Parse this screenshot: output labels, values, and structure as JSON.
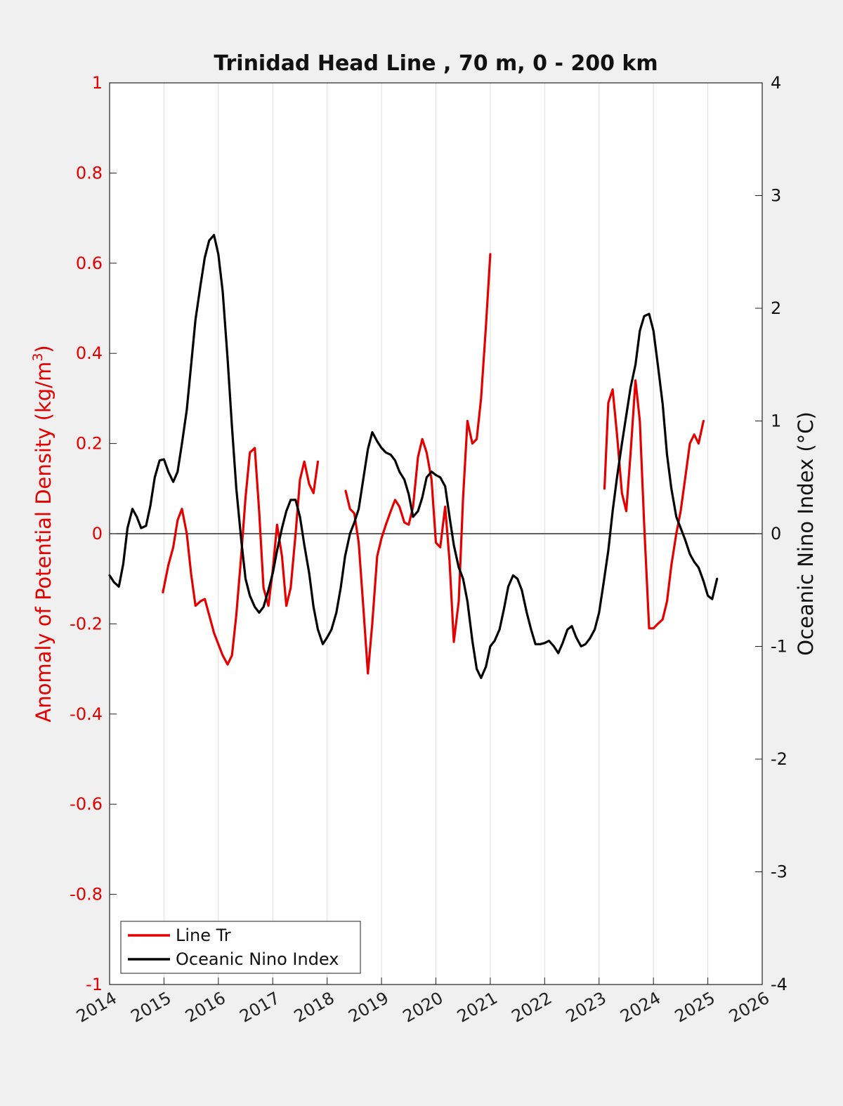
{
  "chart_data": {
    "type": "line",
    "title": "Trinidad Head Line , 70 m, 0 - 200 km",
    "ylabel_left": "Anomaly of Potential Density (kg/m³)",
    "ylabel_left_parts": {
      "base": "Anomaly of Potential Density (kg/m",
      "sup": "3",
      "end": ")"
    },
    "ylabel_right": "Oceanic Nino Index (°C)",
    "xlim": [
      2014,
      2026
    ],
    "ylim_left": [
      -1,
      1
    ],
    "ylim_right": [
      -4,
      4
    ],
    "x_ticks": [
      "2014",
      "2015",
      "2016",
      "2017",
      "2018",
      "2019",
      "2020",
      "2021",
      "2022",
      "2023",
      "2024",
      "2025",
      "2026"
    ],
    "y_ticks_left": [
      "1",
      "0.8",
      "0.6",
      "0.4",
      "0.2",
      "0",
      "-0.2",
      "-0.4",
      "-0.6",
      "-0.8",
      "-1"
    ],
    "y_ticks_right": [
      "4",
      "3",
      "2",
      "1",
      "0",
      "-1",
      "-2",
      "-3",
      "-4"
    ],
    "grid": "vertical",
    "legend_position": "bottom-left",
    "colors": {
      "line_tr": "#e50000",
      "oni": "#000000",
      "left_axis": "#e50000",
      "zero_line": "#000000",
      "grid": "#dddddd"
    },
    "series": [
      {
        "name": "Line Tr",
        "axis": "left",
        "segments": [
          [
            [
              2014.98,
              -0.13
            ],
            [
              2015.08,
              -0.07
            ],
            [
              2015.17,
              -0.03
            ],
            [
              2015.25,
              0.03
            ],
            [
              2015.33,
              0.055
            ],
            [
              2015.42,
              0.0
            ],
            [
              2015.5,
              -0.09
            ],
            [
              2015.58,
              -0.16
            ],
            [
              2015.67,
              -0.15
            ],
            [
              2015.75,
              -0.145
            ],
            [
              2015.83,
              -0.18
            ],
            [
              2015.92,
              -0.22
            ],
            [
              2016.0,
              -0.245
            ],
            [
              2016.08,
              -0.27
            ],
            [
              2016.17,
              -0.29
            ],
            [
              2016.25,
              -0.27
            ],
            [
              2016.33,
              -0.18
            ],
            [
              2016.42,
              -0.05
            ],
            [
              2016.5,
              0.08
            ],
            [
              2016.58,
              0.18
            ],
            [
              2016.67,
              0.19
            ],
            [
              2016.75,
              0.05
            ],
            [
              2016.83,
              -0.12
            ],
            [
              2016.92,
              -0.16
            ],
            [
              2017.0,
              -0.08
            ],
            [
              2017.08,
              0.02
            ],
            [
              2017.17,
              -0.05
            ],
            [
              2017.25,
              -0.16
            ],
            [
              2017.33,
              -0.12
            ],
            [
              2017.42,
              0.0
            ],
            [
              2017.5,
              0.12
            ],
            [
              2017.58,
              0.16
            ],
            [
              2017.67,
              0.11
            ],
            [
              2017.75,
              0.09
            ],
            [
              2017.83,
              0.16
            ]
          ],
          [
            [
              2018.34,
              0.095
            ],
            [
              2018.42,
              0.055
            ],
            [
              2018.5,
              0.045
            ],
            [
              2018.58,
              -0.02
            ],
            [
              2018.67,
              -0.17
            ],
            [
              2018.75,
              -0.31
            ],
            [
              2018.83,
              -0.2
            ],
            [
              2018.92,
              -0.05
            ],
            [
              2019.0,
              -0.01
            ],
            [
              2019.08,
              0.02
            ],
            [
              2019.17,
              0.05
            ],
            [
              2019.25,
              0.075
            ],
            [
              2019.33,
              0.06
            ],
            [
              2019.42,
              0.025
            ],
            [
              2019.5,
              0.02
            ],
            [
              2019.58,
              0.06
            ],
            [
              2019.67,
              0.17
            ],
            [
              2019.75,
              0.21
            ],
            [
              2019.83,
              0.18
            ],
            [
              2019.92,
              0.12
            ],
            [
              2020.0,
              -0.02
            ],
            [
              2020.08,
              -0.03
            ],
            [
              2020.17,
              0.06
            ],
            [
              2020.25,
              -0.06
            ],
            [
              2020.33,
              -0.24
            ],
            [
              2020.42,
              -0.15
            ],
            [
              2020.5,
              0.08
            ],
            [
              2020.58,
              0.25
            ],
            [
              2020.67,
              0.2
            ],
            [
              2020.75,
              0.21
            ],
            [
              2020.83,
              0.3
            ],
            [
              2020.92,
              0.46
            ],
            [
              2021.0,
              0.62
            ]
          ],
          [
            [
              2023.1,
              0.1
            ],
            [
              2023.17,
              0.29
            ],
            [
              2023.25,
              0.32
            ],
            [
              2023.33,
              0.22
            ],
            [
              2023.42,
              0.09
            ],
            [
              2023.5,
              0.05
            ],
            [
              2023.58,
              0.18
            ],
            [
              2023.67,
              0.34
            ],
            [
              2023.75,
              0.25
            ],
            [
              2023.83,
              0.02
            ],
            [
              2023.92,
              -0.21
            ],
            [
              2024.0,
              -0.21
            ],
            [
              2024.08,
              -0.2
            ],
            [
              2024.17,
              -0.19
            ],
            [
              2024.25,
              -0.15
            ],
            [
              2024.33,
              -0.07
            ],
            [
              2024.42,
              0.0
            ],
            [
              2024.5,
              0.05
            ],
            [
              2024.58,
              0.12
            ],
            [
              2024.67,
              0.2
            ],
            [
              2024.75,
              0.22
            ],
            [
              2024.83,
              0.2
            ],
            [
              2024.92,
              0.25
            ]
          ]
        ]
      },
      {
        "name": "Oceanic Nino Index",
        "axis": "right",
        "segments": [
          [
            [
              2014.0,
              -0.37
            ],
            [
              2014.08,
              -0.43
            ],
            [
              2014.17,
              -0.47
            ],
            [
              2014.25,
              -0.27
            ],
            [
              2014.33,
              0.05
            ],
            [
              2014.42,
              0.22
            ],
            [
              2014.5,
              0.15
            ],
            [
              2014.58,
              0.05
            ],
            [
              2014.67,
              0.07
            ],
            [
              2014.75,
              0.25
            ],
            [
              2014.83,
              0.5
            ],
            [
              2014.92,
              0.65
            ],
            [
              2015.0,
              0.66
            ],
            [
              2015.08,
              0.55
            ],
            [
              2015.17,
              0.46
            ],
            [
              2015.25,
              0.55
            ],
            [
              2015.33,
              0.8
            ],
            [
              2015.42,
              1.1
            ],
            [
              2015.5,
              1.5
            ],
            [
              2015.58,
              1.9
            ],
            [
              2015.67,
              2.2
            ],
            [
              2015.75,
              2.45
            ],
            [
              2015.83,
              2.6
            ],
            [
              2015.92,
              2.65
            ],
            [
              2016.0,
              2.48
            ],
            [
              2016.08,
              2.15
            ],
            [
              2016.17,
              1.55
            ],
            [
              2016.25,
              0.95
            ],
            [
              2016.33,
              0.4
            ],
            [
              2016.42,
              -0.05
            ],
            [
              2016.5,
              -0.4
            ],
            [
              2016.58,
              -0.55
            ],
            [
              2016.67,
              -0.65
            ],
            [
              2016.75,
              -0.7
            ],
            [
              2016.83,
              -0.65
            ],
            [
              2016.92,
              -0.5
            ],
            [
              2017.0,
              -0.35
            ],
            [
              2017.08,
              -0.15
            ],
            [
              2017.17,
              0.05
            ],
            [
              2017.25,
              0.2
            ],
            [
              2017.33,
              0.3
            ],
            [
              2017.42,
              0.3
            ],
            [
              2017.5,
              0.15
            ],
            [
              2017.58,
              -0.1
            ],
            [
              2017.67,
              -0.35
            ],
            [
              2017.75,
              -0.65
            ],
            [
              2017.83,
              -0.85
            ],
            [
              2017.92,
              -0.98
            ],
            [
              2018.0,
              -0.92
            ],
            [
              2018.08,
              -0.85
            ],
            [
              2018.17,
              -0.7
            ],
            [
              2018.25,
              -0.48
            ],
            [
              2018.33,
              -0.2
            ],
            [
              2018.42,
              0.0
            ],
            [
              2018.5,
              0.1
            ],
            [
              2018.58,
              0.22
            ],
            [
              2018.67,
              0.5
            ],
            [
              2018.75,
              0.75
            ],
            [
              2018.83,
              0.9
            ],
            [
              2018.92,
              0.82
            ],
            [
              2019.0,
              0.76
            ],
            [
              2019.08,
              0.72
            ],
            [
              2019.17,
              0.7
            ],
            [
              2019.25,
              0.65
            ],
            [
              2019.33,
              0.55
            ],
            [
              2019.42,
              0.48
            ],
            [
              2019.5,
              0.35
            ],
            [
              2019.58,
              0.15
            ],
            [
              2019.67,
              0.2
            ],
            [
              2019.75,
              0.32
            ],
            [
              2019.83,
              0.5
            ],
            [
              2019.92,
              0.55
            ],
            [
              2020.0,
              0.52
            ],
            [
              2020.08,
              0.5
            ],
            [
              2020.17,
              0.42
            ],
            [
              2020.25,
              0.15
            ],
            [
              2020.33,
              -0.1
            ],
            [
              2020.42,
              -0.3
            ],
            [
              2020.5,
              -0.4
            ],
            [
              2020.58,
              -0.6
            ],
            [
              2020.67,
              -0.95
            ],
            [
              2020.75,
              -1.2
            ],
            [
              2020.83,
              -1.28
            ],
            [
              2020.92,
              -1.18
            ],
            [
              2021.0,
              -1.0
            ],
            [
              2021.08,
              -0.95
            ],
            [
              2021.17,
              -0.85
            ],
            [
              2021.25,
              -0.67
            ],
            [
              2021.33,
              -0.47
            ],
            [
              2021.42,
              -0.37
            ],
            [
              2021.5,
              -0.4
            ],
            [
              2021.58,
              -0.5
            ],
            [
              2021.67,
              -0.7
            ],
            [
              2021.75,
              -0.85
            ],
            [
              2021.83,
              -0.98
            ],
            [
              2021.92,
              -0.98
            ],
            [
              2022.0,
              -0.97
            ],
            [
              2022.08,
              -0.95
            ],
            [
              2022.17,
              -1.0
            ],
            [
              2022.25,
              -1.06
            ],
            [
              2022.33,
              -0.97
            ],
            [
              2022.42,
              -0.85
            ],
            [
              2022.5,
              -0.82
            ],
            [
              2022.58,
              -0.92
            ],
            [
              2022.67,
              -1.0
            ],
            [
              2022.75,
              -0.98
            ],
            [
              2022.83,
              -0.93
            ],
            [
              2022.92,
              -0.85
            ],
            [
              2023.0,
              -0.7
            ],
            [
              2023.08,
              -0.45
            ],
            [
              2023.17,
              -0.15
            ],
            [
              2023.25,
              0.2
            ],
            [
              2023.33,
              0.5
            ],
            [
              2023.42,
              0.8
            ],
            [
              2023.5,
              1.05
            ],
            [
              2023.58,
              1.3
            ],
            [
              2023.67,
              1.5
            ],
            [
              2023.75,
              1.8
            ],
            [
              2023.83,
              1.93
            ],
            [
              2023.92,
              1.95
            ],
            [
              2024.0,
              1.8
            ],
            [
              2024.08,
              1.5
            ],
            [
              2024.17,
              1.15
            ],
            [
              2024.25,
              0.7
            ],
            [
              2024.33,
              0.4
            ],
            [
              2024.42,
              0.15
            ],
            [
              2024.5,
              0.05
            ],
            [
              2024.58,
              -0.05
            ],
            [
              2024.67,
              -0.18
            ],
            [
              2024.75,
              -0.25
            ],
            [
              2024.83,
              -0.3
            ],
            [
              2024.92,
              -0.42
            ],
            [
              2025.0,
              -0.55
            ],
            [
              2025.08,
              -0.58
            ],
            [
              2025.17,
              -0.4
            ]
          ]
        ]
      }
    ]
  },
  "legend": {
    "items": [
      {
        "label": "Line Tr",
        "color": "#e50000"
      },
      {
        "label": "Oceanic Nino Index",
        "color": "#000000"
      }
    ]
  }
}
